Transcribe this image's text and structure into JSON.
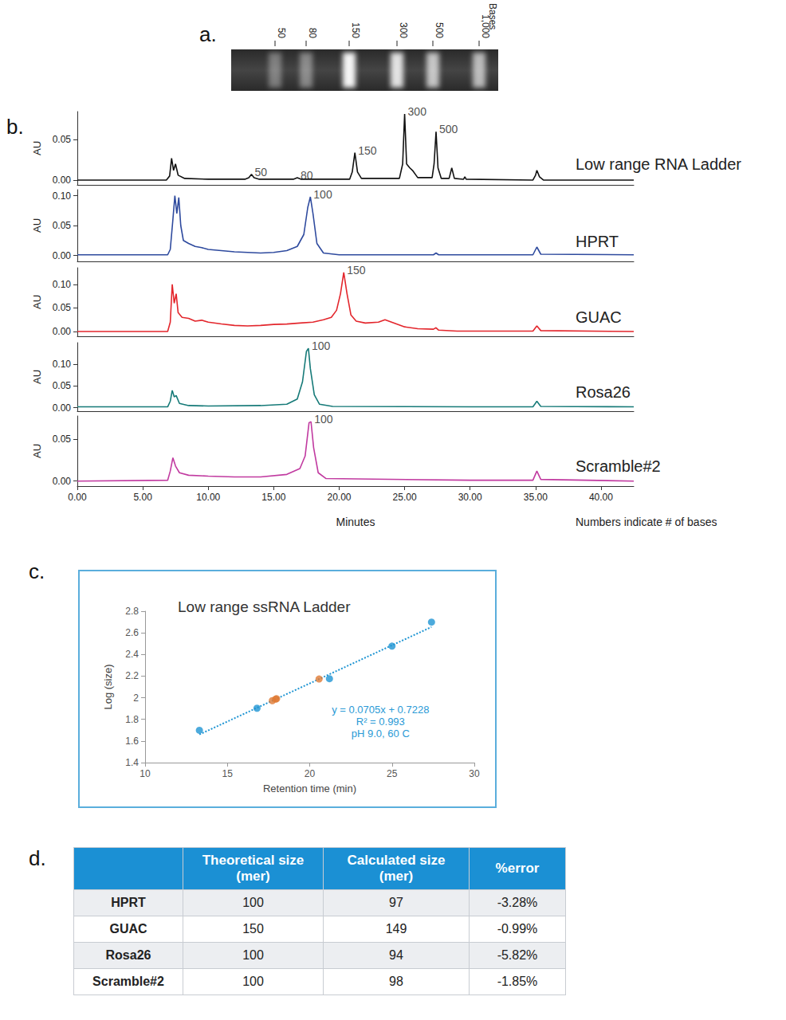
{
  "panel_labels": [
    "a.",
    "b.",
    "c.",
    "d."
  ],
  "gel": {
    "bands": [
      "50",
      "80",
      "150",
      "300",
      "500",
      "1,000"
    ],
    "unit": "Bases"
  },
  "footnote": "Numbers indicate # of bases",
  "chart_data": [
    {
      "type": "line",
      "ylabel": "AU",
      "xlim": [
        0,
        42.5
      ],
      "xticks": [
        {
          "value": 0,
          "label": "0.00"
        },
        {
          "value": 5,
          "label": "5.00"
        },
        {
          "value": 10,
          "label": "10.00"
        },
        {
          "value": 15,
          "label": "15.00"
        },
        {
          "value": 20,
          "label": "20.00"
        },
        {
          "value": 25,
          "label": "25.00"
        },
        {
          "value": 30,
          "label": "30.00"
        },
        {
          "value": 35,
          "label": "35.00"
        },
        {
          "value": 40,
          "label": "40.00"
        }
      ],
      "ylim": [
        -0.006,
        0.085
      ],
      "yticks": [
        {
          "value": 0,
          "label": "0.00"
        },
        0.05
      ],
      "grid": false,
      "tick_labels": "y",
      "x": [
        0,
        6.8,
        7.05,
        7.2,
        7.35,
        7.5,
        7.7,
        8.2,
        10,
        12.8,
        13.1,
        13.3,
        13.5,
        13.9,
        16.5,
        16.8,
        17.1,
        20.8,
        21.0,
        21.2,
        21.4,
        21.7,
        24.6,
        24.85,
        25.0,
        25.15,
        25.4,
        25.6,
        26.0,
        27.1,
        27.25,
        27.4,
        27.55,
        27.8,
        28.4,
        28.6,
        28.8,
        29.5,
        29.6,
        29.7,
        34.8,
        35.0,
        35.1,
        35.3,
        35.6,
        42.5
      ],
      "series": [
        {
          "name": "Low range RNA Ladder",
          "color": "#111111",
          "values": [
            0,
            0,
            0.005,
            0.027,
            0.012,
            0.02,
            0.006,
            0.002,
            0.001,
            0.001,
            0.003,
            0.007,
            0.003,
            0.001,
            0.001,
            0.003,
            0.001,
            0.001,
            0.01,
            0.034,
            0.01,
            0.002,
            0.002,
            0.02,
            0.082,
            0.02,
            0.015,
            0.012,
            0.003,
            0.003,
            0.02,
            0.06,
            0.015,
            0.002,
            0.002,
            0.015,
            0.002,
            0.001,
            0.004,
            0.001,
            0,
            0.006,
            0.012,
            0.004,
            0,
            0
          ]
        }
      ],
      "annotations": [
        {
          "text": "50",
          "x": 13.3,
          "y": 0.007
        },
        {
          "text": "80",
          "x": 16.8,
          "y": 0.003
        },
        {
          "text": "150",
          "x": 21.2,
          "y": 0.034
        },
        {
          "text": "300",
          "x": 25.0,
          "y": 0.082
        },
        {
          "text": "500",
          "x": 27.4,
          "y": 0.06
        }
      ]
    },
    {
      "type": "line",
      "ylabel": "AU",
      "xlim": [
        0,
        42.5
      ],
      "xticks": [
        {
          "value": 0,
          "label": "0.00"
        },
        {
          "value": 5,
          "label": "5.00"
        },
        {
          "value": 10,
          "label": "10.00"
        },
        {
          "value": 15,
          "label": "15.00"
        },
        {
          "value": 20,
          "label": "20.00"
        },
        {
          "value": 25,
          "label": "25.00"
        },
        {
          "value": 30,
          "label": "30.00"
        },
        {
          "value": 35,
          "label": "35.00"
        },
        {
          "value": 40,
          "label": "40.00"
        }
      ],
      "ylim": [
        -0.01,
        0.11
      ],
      "yticks": [
        {
          "value": 0,
          "label": "0.00"
        },
        0.05,
        {
          "value": 0.1,
          "label": "0.10"
        }
      ],
      "grid": false,
      "tick_labels": "y",
      "x": [
        0,
        6.9,
        7.1,
        7.3,
        7.45,
        7.6,
        7.75,
        7.9,
        8.1,
        8.5,
        9.0,
        9.5,
        10,
        11,
        12,
        13,
        14,
        15,
        16,
        16.8,
        17.3,
        17.6,
        17.8,
        18.0,
        18.3,
        18.8,
        20,
        27.2,
        27.4,
        27.6,
        34.8,
        35.1,
        35.4,
        42.5
      ],
      "series": [
        {
          "name": "HPRT",
          "color": "#2e4a9e",
          "values": [
            0.001,
            0.001,
            0.01,
            0.06,
            0.1,
            0.07,
            0.097,
            0.05,
            0.025,
            0.02,
            0.015,
            0.013,
            0.01,
            0.008,
            0.006,
            0.005,
            0.004,
            0.005,
            0.008,
            0.015,
            0.035,
            0.08,
            0.098,
            0.07,
            0.02,
            0.004,
            0.001,
            0.001,
            0.004,
            0.001,
            0.001,
            0.014,
            0.002,
            0.001
          ]
        }
      ],
      "annotations": [
        {
          "text": "100",
          "x": 17.8,
          "y": 0.098
        }
      ]
    },
    {
      "type": "line",
      "ylabel": "AU",
      "xlim": [
        0,
        42.5
      ],
      "xticks": [
        {
          "value": 0,
          "label": "0.00"
        },
        {
          "value": 5,
          "label": "5.00"
        },
        {
          "value": 10,
          "label": "10.00"
        },
        {
          "value": 15,
          "label": "15.00"
        },
        {
          "value": 20,
          "label": "20.00"
        },
        {
          "value": 25,
          "label": "25.00"
        },
        {
          "value": 30,
          "label": "30.00"
        },
        {
          "value": 35,
          "label": "35.00"
        },
        {
          "value": 40,
          "label": "40.00"
        }
      ],
      "ylim": [
        -0.01,
        0.135
      ],
      "yticks": [
        {
          "value": 0,
          "label": "0.00"
        },
        0.05,
        {
          "value": 0.1,
          "label": "0.10"
        }
      ],
      "grid": false,
      "tick_labels": "y",
      "x": [
        0,
        6.9,
        7.1,
        7.25,
        7.4,
        7.55,
        7.7,
        8.0,
        8.5,
        9.0,
        9.5,
        10,
        11,
        12,
        13,
        14,
        15,
        16,
        17,
        18,
        18.8,
        19.4,
        19.8,
        20.1,
        20.35,
        20.6,
        20.9,
        21.3,
        22,
        23,
        23.5,
        24,
        25,
        26,
        27.2,
        27.4,
        27.6,
        29,
        34.8,
        35.1,
        35.4,
        42.5
      ],
      "series": [
        {
          "name": "GUAC",
          "color": "#e3262c",
          "values": [
            0,
            0,
            0.02,
            0.1,
            0.06,
            0.08,
            0.04,
            0.03,
            0.028,
            0.022,
            0.024,
            0.02,
            0.016,
            0.013,
            0.012,
            0.013,
            0.015,
            0.016,
            0.018,
            0.02,
            0.025,
            0.03,
            0.045,
            0.08,
            0.125,
            0.08,
            0.035,
            0.022,
            0.018,
            0.02,
            0.025,
            0.02,
            0.01,
            0.006,
            0.005,
            0.008,
            0.003,
            0.001,
            0.001,
            0.012,
            0.002,
            0
          ]
        }
      ],
      "annotations": [
        {
          "text": "150",
          "x": 20.35,
          "y": 0.125
        }
      ]
    },
    {
      "type": "line",
      "ylabel": "AU",
      "xlim": [
        0,
        42.5
      ],
      "xticks": [
        {
          "value": 0,
          "label": "0.00"
        },
        {
          "value": 5,
          "label": "5.00"
        },
        {
          "value": 10,
          "label": "10.00"
        },
        {
          "value": 15,
          "label": "15.00"
        },
        {
          "value": 20,
          "label": "20.00"
        },
        {
          "value": 25,
          "label": "25.00"
        },
        {
          "value": 30,
          "label": "30.00"
        },
        {
          "value": 35,
          "label": "35.00"
        },
        {
          "value": 40,
          "label": "40.00"
        }
      ],
      "ylim": [
        -0.008,
        0.15
      ],
      "yticks": [
        {
          "value": 0,
          "label": "0.00"
        },
        0.05,
        {
          "value": 0.1,
          "label": "0.10"
        }
      ],
      "grid": false,
      "tick_labels": "y",
      "x": [
        0,
        6.9,
        7.1,
        7.25,
        7.4,
        7.55,
        7.8,
        8.5,
        10,
        14,
        16,
        16.8,
        17.2,
        17.5,
        17.65,
        17.8,
        18.1,
        18.5,
        19.5,
        30,
        34.8,
        35.1,
        35.4,
        42.5
      ],
      "series": [
        {
          "name": "Rosa26",
          "color": "#167a78",
          "values": [
            0.002,
            0.002,
            0.015,
            0.04,
            0.025,
            0.028,
            0.01,
            0.005,
            0.004,
            0.005,
            0.008,
            0.02,
            0.06,
            0.13,
            0.137,
            0.09,
            0.03,
            0.008,
            0.003,
            0.002,
            0.002,
            0.015,
            0.003,
            0.002
          ]
        }
      ],
      "annotations": [
        {
          "text": "100",
          "x": 17.65,
          "y": 0.137
        }
      ]
    },
    {
      "type": "line",
      "ylabel": "AU",
      "xlabel": "Minutes",
      "xlim": [
        0,
        42.5
      ],
      "xticks": [
        {
          "value": 0,
          "label": "0.00"
        },
        {
          "value": 5,
          "label": "5.00"
        },
        {
          "value": 10,
          "label": "10.00"
        },
        {
          "value": 15,
          "label": "15.00"
        },
        {
          "value": 20,
          "label": "20.00"
        },
        {
          "value": 25,
          "label": "25.00"
        },
        {
          "value": 30,
          "label": "30.00"
        },
        {
          "value": 35,
          "label": "35.00"
        },
        {
          "value": 40,
          "label": "40.00"
        }
      ],
      "ylim": [
        -0.006,
        0.078
      ],
      "yticks": [
        {
          "value": 0,
          "label": "0.00"
        },
        0.05
      ],
      "grid": false,
      "x": [
        0,
        6.9,
        7.1,
        7.3,
        7.5,
        7.8,
        8.5,
        10,
        12,
        14,
        16,
        17,
        17.4,
        17.7,
        17.85,
        18.05,
        18.4,
        19,
        30,
        34.8,
        35.1,
        35.4,
        42.5
      ],
      "series": [
        {
          "name": "Scramble#2",
          "color": "#c13aa0",
          "values": [
            0,
            0.001,
            0.012,
            0.028,
            0.018,
            0.01,
            0.007,
            0.006,
            0.005,
            0.005,
            0.008,
            0.015,
            0.03,
            0.07,
            0.071,
            0.04,
            0.01,
            0.003,
            0.001,
            0.001,
            0.012,
            0.002,
            0
          ]
        }
      ],
      "annotations": [
        {
          "text": "100",
          "x": 17.85,
          "y": 0.071
        }
      ]
    },
    {
      "type": "scatter",
      "title": "Low range ssRNA Ladder",
      "xlabel": "Retention time (min)",
      "ylabel": "Log (size)",
      "xlim": [
        10,
        30
      ],
      "xticks": [
        10,
        15,
        20,
        25,
        30
      ],
      "ylim": [
        1.4,
        2.8
      ],
      "yticks": [
        1.4,
        1.6,
        1.8,
        2,
        2.2,
        2.4,
        2.6,
        2.8
      ],
      "grid": false,
      "series": [
        {
          "type": "line",
          "color": "#1f95d3",
          "line_style": "dotted",
          "x": [
            13.3,
            27.4
          ],
          "values": [
            1.66,
            2.654
          ]
        },
        {
          "type": "scatter",
          "color": "#1f95d3",
          "marker": "circle",
          "x": [
            13.3,
            16.8,
            21.2,
            25.0,
            27.4
          ],
          "values": [
            1.699,
            1.903,
            2.176,
            2.477,
            2.699
          ]
        },
        {
          "type": "scatter",
          "color": "#e07b35",
          "marker": "circle",
          "x": [
            17.93,
            20.57,
            17.73,
            17.99
          ],
          "values": [
            1.987,
            2.173,
            1.973,
            1.991
          ]
        }
      ],
      "annotations": [
        "y = 0.0705x + 0.7228",
        "R² = 0.993",
        "pH 9.0, 60 C"
      ]
    }
  ],
  "table": {
    "header": [
      "Theoretical size (mer)",
      "Calculated size (mer)",
      "%error"
    ],
    "rows": [
      [
        "HPRT",
        "100",
        "97",
        "-3.28%"
      ],
      [
        "GUAC",
        "150",
        "149",
        "-0.99%"
      ],
      [
        "Rosa26",
        "100",
        "94",
        "-5.82%"
      ],
      [
        "Scramble#2",
        "100",
        "98",
        "-1.85%"
      ]
    ]
  }
}
